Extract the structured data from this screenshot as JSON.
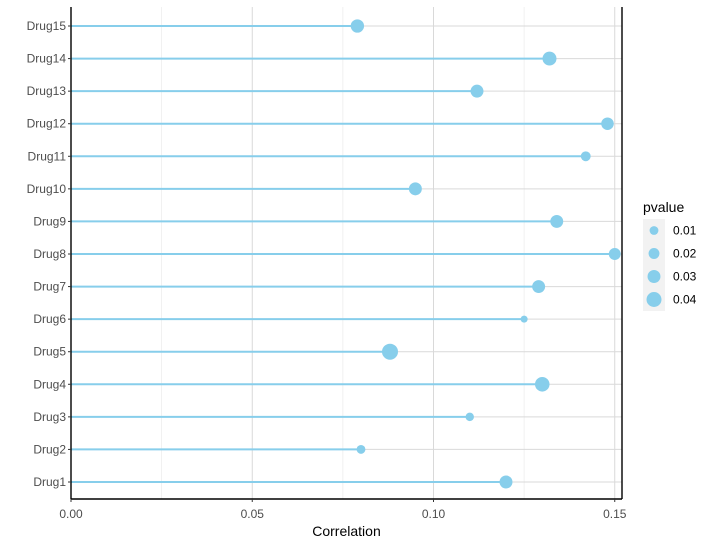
{
  "chart_data": {
    "type": "scatter",
    "subtype": "lollipop",
    "title": "",
    "xlabel": "Correlation",
    "ylabel": "",
    "xlim": [
      0.0,
      0.152
    ],
    "x_ticks": [
      0.0,
      0.05,
      0.1,
      0.15
    ],
    "x_tick_labels": [
      "0.00",
      "0.05",
      "0.10",
      "0.15"
    ],
    "grid": true,
    "categories": [
      "Drug1",
      "Drug2",
      "Drug3",
      "Drug4",
      "Drug5",
      "Drug6",
      "Drug7",
      "Drug8",
      "Drug9",
      "Drug10",
      "Drug11",
      "Drug12",
      "Drug13",
      "Drug14",
      "Drug15"
    ],
    "values": [
      0.12,
      0.08,
      0.11,
      0.13,
      0.088,
      0.125,
      0.129,
      0.15,
      0.134,
      0.095,
      0.142,
      0.148,
      0.112,
      0.132,
      0.079
    ],
    "pvalue": [
      0.03,
      0.01,
      0.008,
      0.038,
      0.045,
      0.001,
      0.03,
      0.025,
      0.03,
      0.03,
      0.015,
      0.028,
      0.03,
      0.035,
      0.032
    ],
    "color": "#87ceeb",
    "legend": {
      "title": "pvalue",
      "position": "right",
      "entries": [
        {
          "label": "0.01",
          "value": 0.01
        },
        {
          "label": "0.02",
          "value": 0.02
        },
        {
          "label": "0.03",
          "value": 0.03
        },
        {
          "label": "0.04",
          "value": 0.04
        }
      ]
    }
  }
}
